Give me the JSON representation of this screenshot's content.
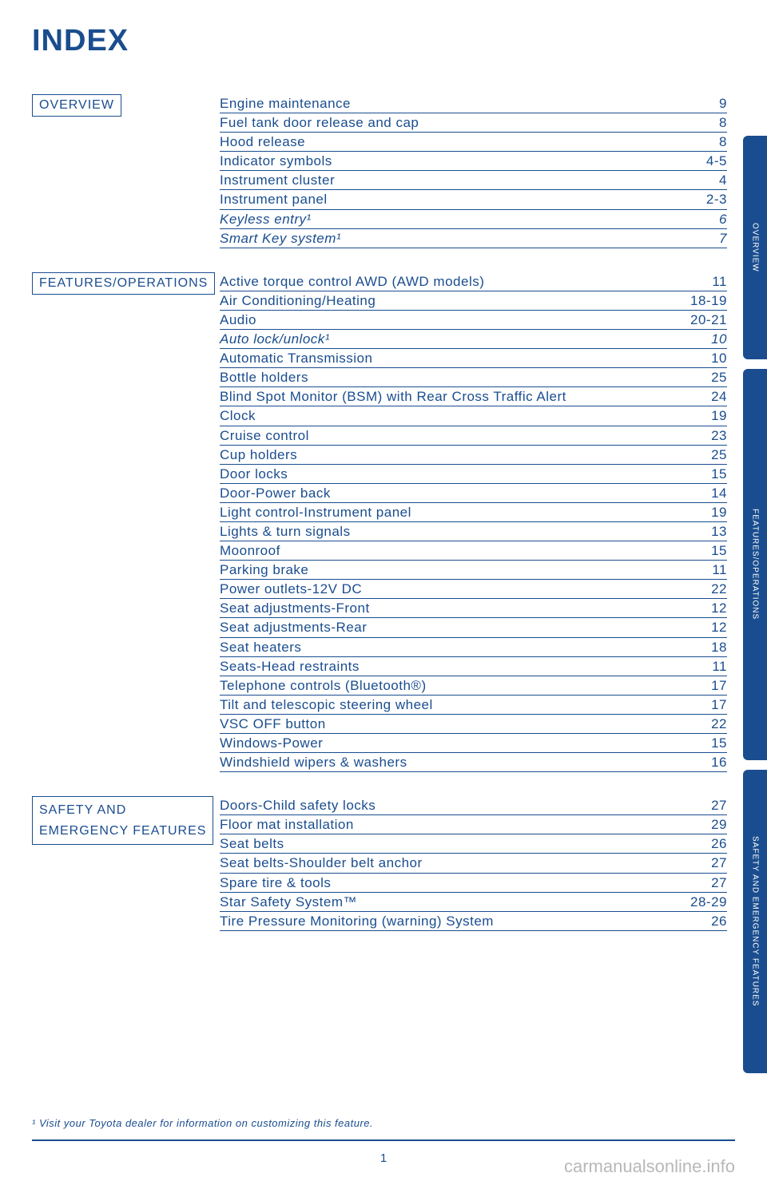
{
  "title": "INDEX",
  "colors": {
    "primary": "#1a4d8f",
    "tab_bg": "#1a4d8f",
    "background": "#ffffff",
    "watermark": "#b8b8b8"
  },
  "sections": [
    {
      "label": "OVERVIEW",
      "multiline": false,
      "entries": [
        {
          "label": "Engine maintenance",
          "page": "9",
          "italic": false
        },
        {
          "label": "Fuel tank door release and cap",
          "page": "8",
          "italic": false
        },
        {
          "label": "Hood release",
          "page": "8",
          "italic": false
        },
        {
          "label": "Indicator symbols",
          "page": "4-5",
          "italic": false
        },
        {
          "label": "Instrument cluster",
          "page": "4",
          "italic": false
        },
        {
          "label": "Instrument panel",
          "page": "2-3",
          "italic": false
        },
        {
          "label": "Keyless entry¹",
          "page": "6",
          "italic": true
        },
        {
          "label": "Smart Key system¹",
          "page": "7",
          "italic": true
        }
      ]
    },
    {
      "label": "FEATURES/OPERATIONS",
      "multiline": false,
      "entries": [
        {
          "label": "Active torque control AWD (AWD models)",
          "page": "11",
          "italic": false
        },
        {
          "label": "Air Conditioning/Heating",
          "page": "18-19",
          "italic": false
        },
        {
          "label": "Audio",
          "page": "20-21",
          "italic": false
        },
        {
          "label": "Auto lock/unlock¹",
          "page": "10",
          "italic": true
        },
        {
          "label": "Automatic Transmission",
          "page": "10",
          "italic": false
        },
        {
          "label": "Bottle holders",
          "page": "25",
          "italic": false
        },
        {
          "label": "Blind Spot Monitor (BSM) with Rear Cross Traffic Alert",
          "page": "24",
          "italic": false
        },
        {
          "label": "Clock",
          "page": "19",
          "italic": false
        },
        {
          "label": "Cruise control",
          "page": "23",
          "italic": false
        },
        {
          "label": "Cup holders",
          "page": "25",
          "italic": false
        },
        {
          "label": "Door locks",
          "page": "15",
          "italic": false
        },
        {
          "label": "Door-Power back",
          "page": "14",
          "italic": false
        },
        {
          "label": "Light control-Instrument panel",
          "page": "19",
          "italic": false
        },
        {
          "label": "Lights & turn signals",
          "page": "13",
          "italic": false
        },
        {
          "label": "Moonroof",
          "page": "15",
          "italic": false
        },
        {
          "label": "Parking brake",
          "page": "11",
          "italic": false
        },
        {
          "label": "Power outlets-12V DC",
          "page": "22",
          "italic": false
        },
        {
          "label": "Seat adjustments-Front",
          "page": "12",
          "italic": false
        },
        {
          "label": "Seat adjustments-Rear",
          "page": "12",
          "italic": false
        },
        {
          "label": "Seat heaters",
          "page": "18",
          "italic": false
        },
        {
          "label": "Seats-Head restraints",
          "page": "11",
          "italic": false
        },
        {
          "label": "Telephone controls (Bluetooth®)",
          "page": "17",
          "italic": false
        },
        {
          "label": "Tilt and telescopic steering wheel",
          "page": "17",
          "italic": false
        },
        {
          "label": "VSC OFF button",
          "page": "22",
          "italic": false
        },
        {
          "label": "Windows-Power",
          "page": "15",
          "italic": false
        },
        {
          "label": "Windshield wipers & washers",
          "page": "16",
          "italic": false
        }
      ]
    },
    {
      "label": "SAFETY AND\nEMERGENCY FEATURES",
      "multiline": true,
      "entries": [
        {
          "label": "Doors-Child safety locks",
          "page": "27",
          "italic": false
        },
        {
          "label": "Floor mat installation",
          "page": "29",
          "italic": false
        },
        {
          "label": "Seat belts",
          "page": "26",
          "italic": false
        },
        {
          "label": "Seat belts-Shoulder belt anchor",
          "page": "27",
          "italic": false
        },
        {
          "label": "Spare tire & tools",
          "page": "27",
          "italic": false
        },
        {
          "label": "Star Safety System™",
          "page": "28-29",
          "italic": false
        },
        {
          "label": "Tire Pressure Monitoring (warning) System",
          "page": "26",
          "italic": false
        }
      ]
    }
  ],
  "tabs": [
    {
      "text": "OVERVIEW"
    },
    {
      "text": "FEATURES/OPERATIONS"
    },
    {
      "text": "SAFETY AND EMERGENCY FEATURES"
    }
  ],
  "footnote": "¹ Visit your Toyota dealer for information on customizing this feature.",
  "page_number": "1",
  "watermark": "carmanualsonline.info"
}
